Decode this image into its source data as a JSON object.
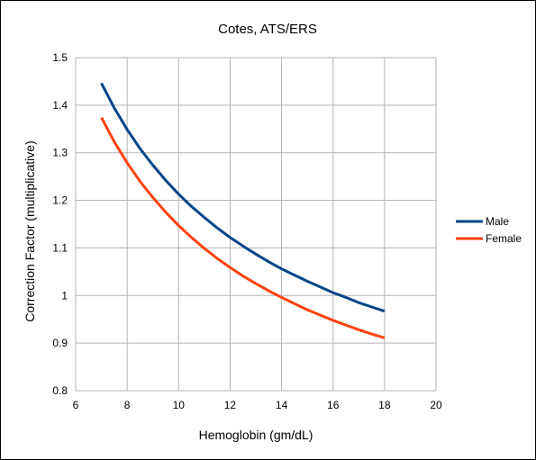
{
  "chart_data": {
    "type": "line",
    "title": "Cotes, ATS/ERS",
    "xlabel": "Hemoglobin (gm/dL)",
    "ylabel": "Correction Factor (multiplicative)",
    "xlim": [
      6,
      20
    ],
    "ylim": [
      0.8,
      1.5
    ],
    "x_ticks": [
      6,
      8,
      10,
      12,
      14,
      16,
      18,
      20
    ],
    "y_ticks": [
      0.8,
      0.9,
      1,
      1.1,
      1.2,
      1.3,
      1.4,
      1.5
    ],
    "x_tick_labels": [
      "6",
      "8",
      "10",
      "12",
      "14",
      "16",
      "18",
      "20"
    ],
    "y_tick_labels": [
      "0.8",
      "0.9",
      "1",
      "1.1",
      "1.2",
      "1.3",
      "1.4",
      "1.5"
    ],
    "grid": true,
    "legend_position": "right",
    "x": [
      7,
      7.5,
      8,
      8.5,
      9,
      9.5,
      10,
      10.5,
      11,
      11.5,
      12,
      12.5,
      13,
      13.5,
      14,
      14.5,
      15,
      15.5,
      16,
      16.5,
      17,
      17.5,
      18
    ],
    "series": [
      {
        "name": "Male",
        "color": "#004586",
        "values": [
          1.446,
          1.394,
          1.349,
          1.309,
          1.274,
          1.242,
          1.213,
          1.187,
          1.164,
          1.142,
          1.122,
          1.104,
          1.087,
          1.071,
          1.056,
          1.043,
          1.03,
          1.018,
          1.006,
          0.996,
          0.985,
          0.976,
          0.967
        ]
      },
      {
        "name": "Female",
        "color": "#ff420e",
        "values": [
          1.374,
          1.323,
          1.279,
          1.24,
          1.206,
          1.175,
          1.147,
          1.122,
          1.099,
          1.078,
          1.059,
          1.041,
          1.025,
          1.01,
          0.996,
          0.983,
          0.97,
          0.959,
          0.948,
          0.938,
          0.928,
          0.919,
          0.911
        ]
      }
    ]
  }
}
